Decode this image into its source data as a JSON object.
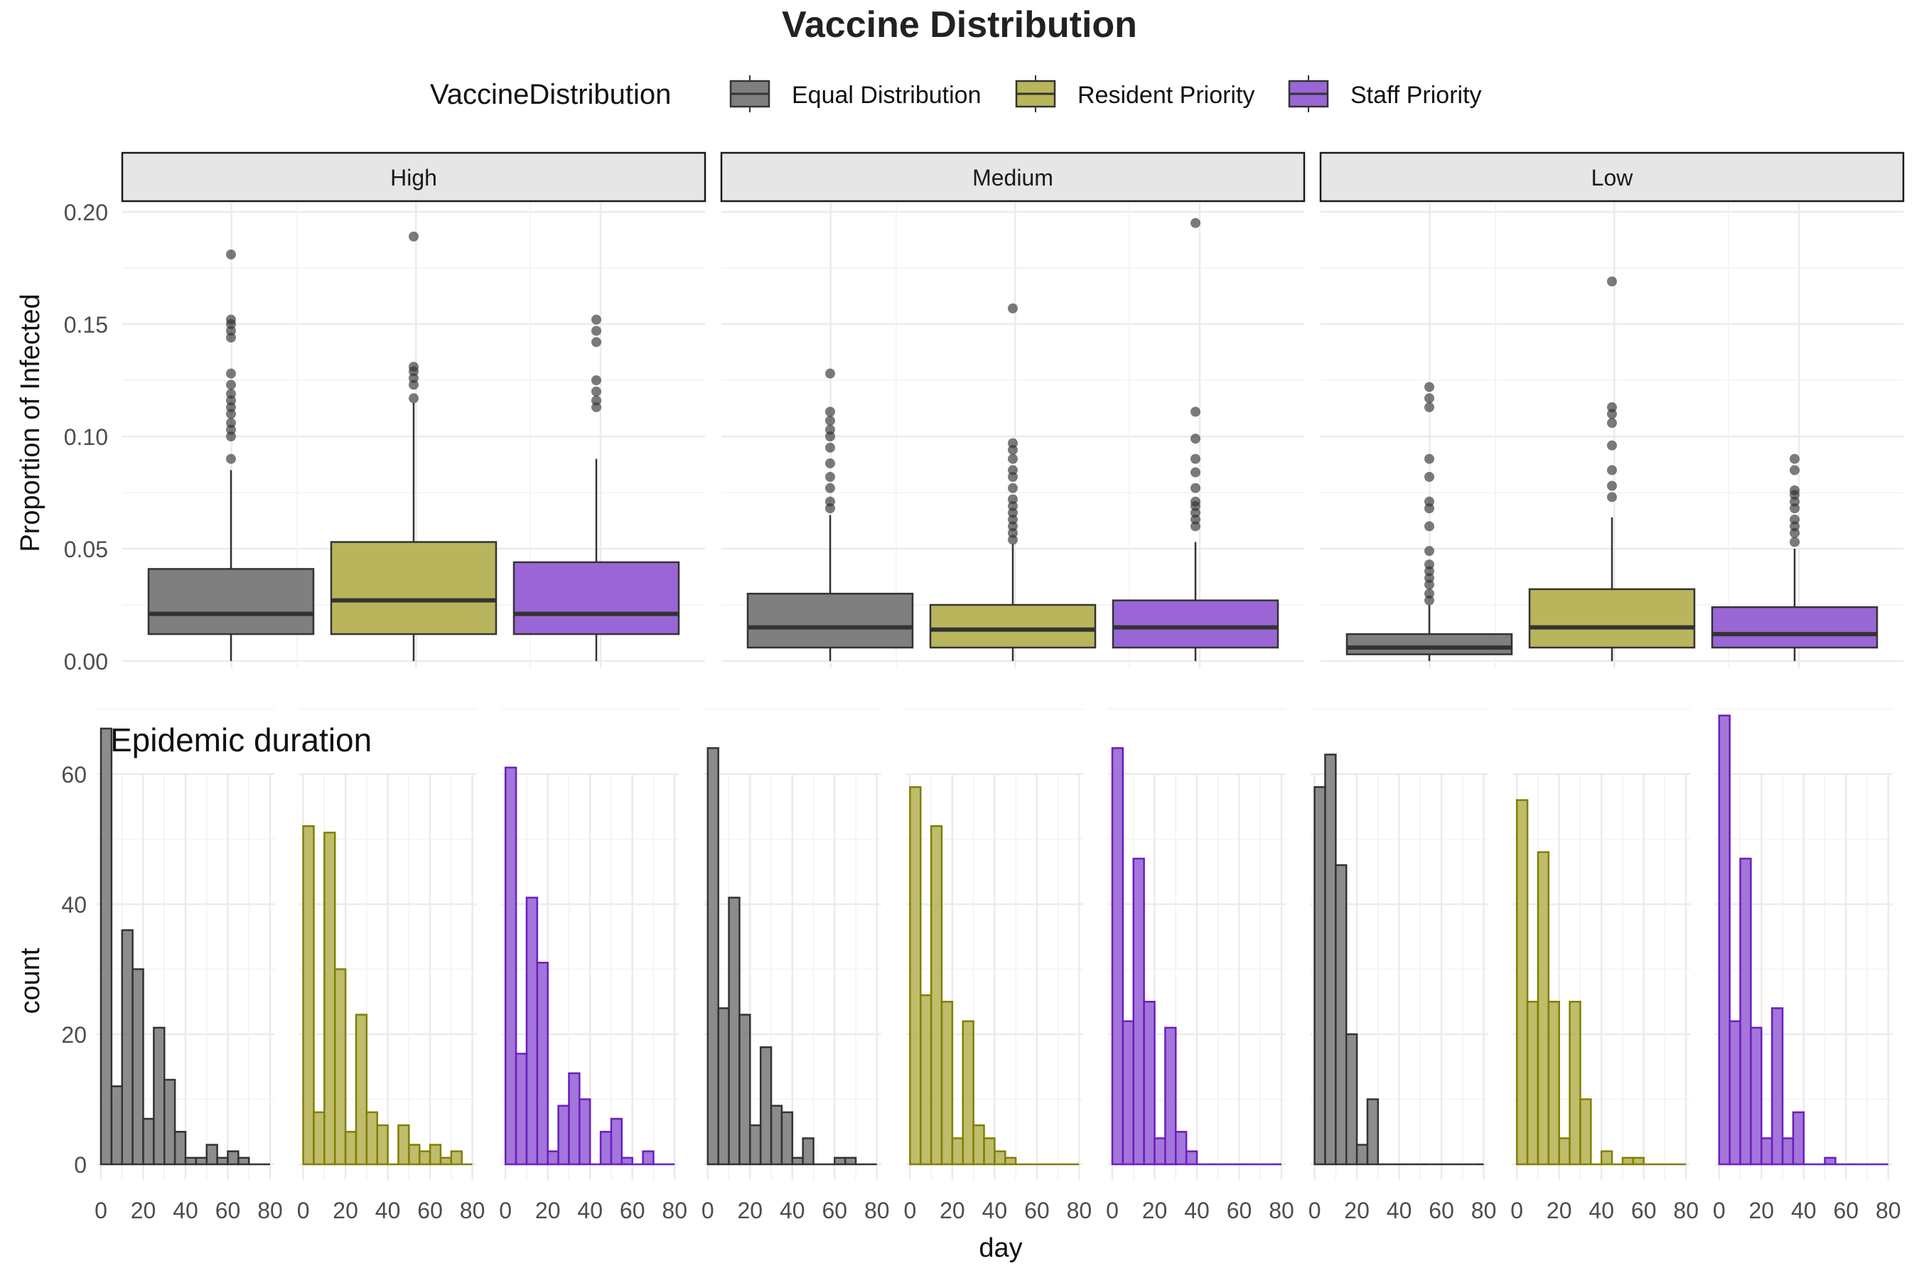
{
  "title": "Vaccine Distribution",
  "legend": {
    "title": "VaccineDistribution",
    "position": "top",
    "items": [
      {
        "label": "Equal Distribution",
        "color": "#7f7f7f",
        "border": "#333333"
      },
      {
        "label": "Resident Priority",
        "color": "#b8b55c",
        "border": "#333333"
      },
      {
        "label": "Staff Priority",
        "color": "#9a66d6",
        "border": "#333333"
      }
    ]
  },
  "colors": {
    "equal": "#7f7f7f",
    "equal_line": "#333333",
    "resident": "#b8b55c",
    "resident_line": "#808000",
    "staff": "#9a66d6",
    "staff_line": "#6a1fbf",
    "grid": "#ebebeb",
    "strip_fill": "#e6e6e6"
  },
  "chart_data": [
    {
      "type": "boxplot",
      "ylabel": "Proportion of Infected",
      "ylim": [
        0,
        0.205
      ],
      "yticks": [
        "0.00",
        "0.05",
        "0.10",
        "0.15",
        "0.20"
      ],
      "ytick_values": [
        0,
        0.05,
        0.1,
        0.15,
        0.2
      ],
      "grid": true,
      "facets": [
        {
          "label": "High",
          "boxes": [
            {
              "group": "Equal Distribution",
              "q1": 0.012,
              "median": 0.021,
              "q3": 0.041,
              "whisker_low": 0.0,
              "whisker_high": 0.085,
              "outliers": [
                0.09,
                0.1,
                0.103,
                0.106,
                0.11,
                0.113,
                0.116,
                0.119,
                0.123,
                0.128,
                0.144,
                0.147,
                0.15,
                0.152,
                0.181
              ]
            },
            {
              "group": "Resident Priority",
              "q1": 0.012,
              "median": 0.027,
              "q3": 0.053,
              "whisker_low": 0.0,
              "whisker_high": 0.115,
              "outliers": [
                0.117,
                0.123,
                0.126,
                0.129,
                0.131,
                0.189
              ]
            },
            {
              "group": "Staff Priority",
              "q1": 0.012,
              "median": 0.021,
              "q3": 0.044,
              "whisker_low": 0.0,
              "whisker_high": 0.09,
              "outliers": [
                0.113,
                0.116,
                0.12,
                0.125,
                0.142,
                0.147,
                0.152
              ]
            }
          ]
        },
        {
          "label": "Medium",
          "boxes": [
            {
              "group": "Equal Distribution",
              "q1": 0.006,
              "median": 0.015,
              "q3": 0.03,
              "whisker_low": 0.0,
              "whisker_high": 0.065,
              "outliers": [
                0.068,
                0.071,
                0.077,
                0.082,
                0.088,
                0.095,
                0.1,
                0.103,
                0.107,
                0.111,
                0.128
              ]
            },
            {
              "group": "Resident Priority",
              "q1": 0.006,
              "median": 0.014,
              "q3": 0.025,
              "whisker_low": 0.0,
              "whisker_high": 0.052,
              "outliers": [
                0.054,
                0.057,
                0.06,
                0.063,
                0.066,
                0.069,
                0.072,
                0.077,
                0.082,
                0.085,
                0.09,
                0.094,
                0.097,
                0.157
              ]
            },
            {
              "group": "Staff Priority",
              "q1": 0.006,
              "median": 0.015,
              "q3": 0.027,
              "whisker_low": 0.0,
              "whisker_high": 0.053,
              "outliers": [
                0.06,
                0.063,
                0.066,
                0.069,
                0.071,
                0.077,
                0.084,
                0.09,
                0.099,
                0.111,
                0.195
              ]
            }
          ]
        },
        {
          "label": "Low",
          "boxes": [
            {
              "group": "Equal Distribution",
              "q1": 0.003,
              "median": 0.006,
              "q3": 0.012,
              "whisker_low": 0.0,
              "whisker_high": 0.025,
              "outliers": [
                0.027,
                0.03,
                0.034,
                0.037,
                0.04,
                0.043,
                0.049,
                0.06,
                0.068,
                0.071,
                0.082,
                0.09,
                0.113,
                0.117,
                0.122
              ]
            },
            {
              "group": "Resident Priority",
              "q1": 0.006,
              "median": 0.015,
              "q3": 0.032,
              "whisker_low": 0.0,
              "whisker_high": 0.064,
              "outliers": [
                0.073,
                0.078,
                0.085,
                0.096,
                0.106,
                0.11,
                0.113,
                0.169
              ]
            },
            {
              "group": "Staff Priority",
              "q1": 0.006,
              "median": 0.012,
              "q3": 0.024,
              "whisker_low": 0.0,
              "whisker_high": 0.05,
              "outliers": [
                0.053,
                0.057,
                0.06,
                0.063,
                0.068,
                0.071,
                0.074,
                0.076,
                0.085,
                0.09
              ]
            }
          ]
        }
      ]
    },
    {
      "type": "histogram",
      "title": "Epidemic duration",
      "xlabel": "day",
      "ylabel": "count",
      "xlim": [
        0,
        80
      ],
      "ylim": [
        0,
        70
      ],
      "xticks": [
        "0",
        "20",
        "40",
        "60",
        "80"
      ],
      "xtick_values": [
        0,
        20,
        40,
        60,
        80
      ],
      "yticks": [
        "0",
        "20",
        "40",
        "60"
      ],
      "ytick_values": [
        0,
        20,
        40,
        60
      ],
      "bin_width": 5,
      "bin_starts": [
        0,
        5,
        10,
        15,
        20,
        25,
        30,
        35,
        40,
        45,
        50,
        55,
        60,
        65,
        70,
        75
      ],
      "panels": [
        {
          "facet": "High",
          "group": "Equal Distribution",
          "counts": [
            67,
            12,
            36,
            30,
            7,
            21,
            13,
            5,
            1,
            1,
            3,
            1,
            2,
            1,
            0,
            0
          ]
        },
        {
          "facet": "High",
          "group": "Resident Priority",
          "counts": [
            52,
            8,
            51,
            30,
            5,
            23,
            8,
            6,
            0,
            6,
            3,
            2,
            3,
            1,
            2,
            0
          ]
        },
        {
          "facet": "High",
          "group": "Staff Priority",
          "counts": [
            61,
            17,
            41,
            31,
            2,
            9,
            14,
            10,
            0,
            5,
            7,
            1,
            0,
            2,
            0,
            0
          ]
        },
        {
          "facet": "Medium",
          "group": "Equal Distribution",
          "counts": [
            64,
            24,
            41,
            23,
            6,
            18,
            9,
            8,
            1,
            4,
            0,
            0,
            1,
            1,
            0,
            0
          ]
        },
        {
          "facet": "Medium",
          "group": "Resident Priority",
          "counts": [
            58,
            26,
            52,
            25,
            4,
            22,
            6,
            4,
            2,
            1,
            0,
            0,
            0,
            0,
            0,
            0
          ]
        },
        {
          "facet": "Medium",
          "group": "Staff Priority",
          "counts": [
            64,
            22,
            47,
            25,
            4,
            21,
            5,
            2,
            0,
            0,
            0,
            0,
            0,
            0,
            0,
            0
          ]
        },
        {
          "facet": "Low",
          "group": "Equal Distribution",
          "counts": [
            58,
            63,
            46,
            20,
            3,
            10,
            0,
            0,
            0,
            0,
            0,
            0,
            0,
            0,
            0,
            0
          ]
        },
        {
          "facet": "Low",
          "group": "Resident Priority",
          "counts": [
            56,
            25,
            48,
            25,
            4,
            25,
            10,
            0,
            2,
            0,
            1,
            1,
            0,
            0,
            0,
            0
          ]
        },
        {
          "facet": "Low",
          "group": "Staff Priority",
          "counts": [
            69,
            22,
            47,
            21,
            4,
            24,
            4,
            8,
            0,
            0,
            1,
            0,
            0,
            0,
            0,
            0
          ]
        }
      ]
    }
  ]
}
